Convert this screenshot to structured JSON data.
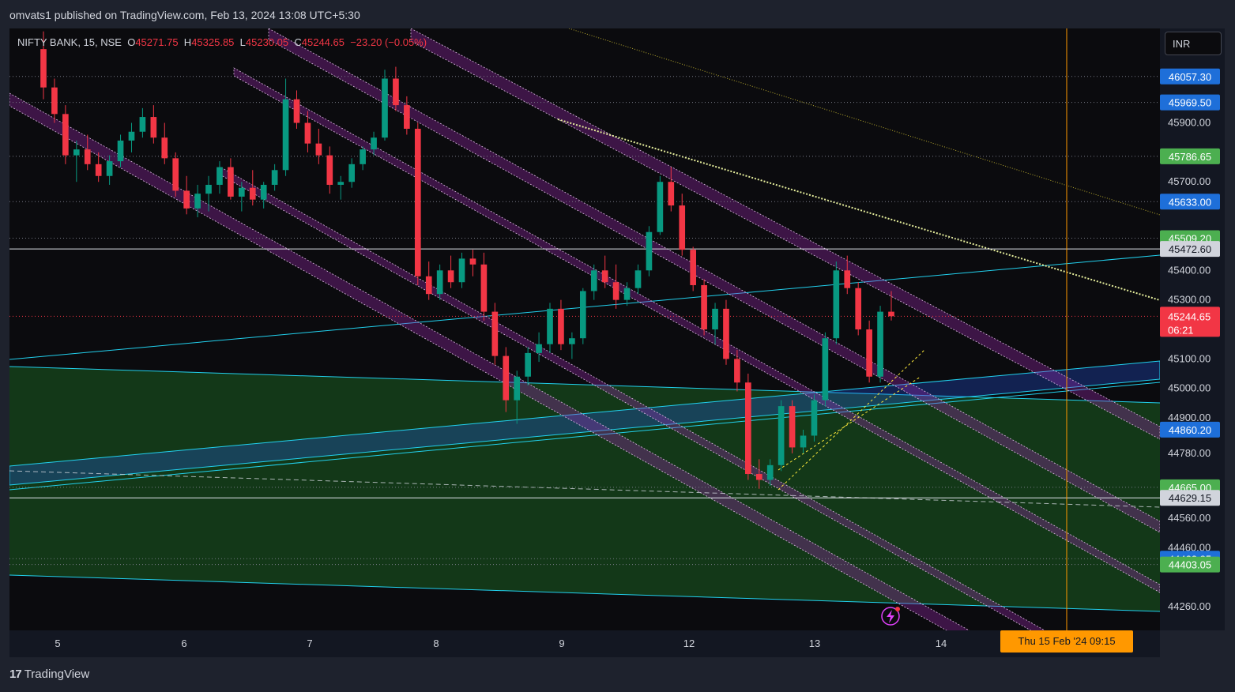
{
  "header": {
    "text": "omvats1 published on TradingView.com, Feb 13, 2024 13:08 UTC+5:30"
  },
  "legend": {
    "symbol": "NIFTY BANK, 15, NSE",
    "o_label": "O",
    "o_value": "45271.75",
    "h_label": "H",
    "h_value": "45325.85",
    "l_label": "L",
    "l_value": "45230.05",
    "c_label": "C",
    "c_value": "45244.65",
    "change": "−23.20 (−0.05%)"
  },
  "currency_button": "INR",
  "footer": {
    "logo_text": "TradingView"
  },
  "chart_data": {
    "type": "candlestick",
    "x_tick_labels": [
      "5",
      "6",
      "7",
      "8",
      "9",
      "12",
      "13",
      "14"
    ],
    "x_highlight_label": "Thu 15 Feb '24   09:15",
    "y_range": [
      44180,
      46220
    ],
    "y_tick_labels": [
      "45900.00",
      "45700.00",
      "45400.00",
      "45300.00",
      "45100.00",
      "45000.00",
      "44900.00",
      "44780.00",
      "44560.00",
      "44460.00",
      "44260.00"
    ],
    "price_tags": [
      {
        "value": 46057.3,
        "label": "46057.30",
        "color": "#1e6fd9",
        "text_color": "#ffffff"
      },
      {
        "value": 45969.5,
        "label": "45969.50",
        "color": "#1e6fd9",
        "text_color": "#ffffff"
      },
      {
        "value": 45786.65,
        "label": "45786.65",
        "color": "#4caf50",
        "text_color": "#ffffff"
      },
      {
        "value": 45633.0,
        "label": "45633.00",
        "color": "#1e6fd9",
        "text_color": "#ffffff"
      },
      {
        "value": 45509.2,
        "label": "45509.20",
        "color": "#4caf50",
        "text_color": "#ffffff"
      },
      {
        "value": 45472.6,
        "label": "45472.60",
        "color": "#d1d4dc",
        "text_color": "#131722"
      },
      {
        "value": 44860.2,
        "label": "44860.20",
        "color": "#1e6fd9",
        "text_color": "#ffffff"
      },
      {
        "value": 44665.0,
        "label": "44665.00",
        "color": "#4caf50",
        "text_color": "#ffffff"
      },
      {
        "value": 44629.15,
        "label": "44629.15",
        "color": "#d1d4dc",
        "text_color": "#131722"
      },
      {
        "value": 44422.85,
        "label": "44422.85",
        "color": "#1e6fd9",
        "text_color": "#ffffff"
      },
      {
        "value": 44403.05,
        "label": "44403.05",
        "color": "#4caf50",
        "text_color": "#ffffff"
      }
    ],
    "last_price": {
      "value": 45244.65,
      "label": "45244.65",
      "countdown": "06:21",
      "color": "#f23645"
    },
    "colors": {
      "up": "#089981",
      "down": "#f23645",
      "channel": "#9c27b0",
      "trend_cyan": "#22d1ee",
      "zone_green": "#1b5e20",
      "vertical": "#ff9800",
      "yellow": "#ffeb3b"
    },
    "horizontal_levels": [
      46057.3,
      45969.5,
      45786.65,
      45633.0,
      45509.2,
      44665.0,
      44422.85,
      44403.05
    ],
    "white_levels": [
      45472.6,
      44629.15
    ],
    "candles_ohlc_summary": [
      [
        46150,
        46210,
        45980,
        46020
      ],
      [
        46020,
        46050,
        45900,
        45930
      ],
      [
        45930,
        45960,
        45760,
        45790
      ],
      [
        45790,
        45840,
        45700,
        45810
      ],
      [
        45810,
        45860,
        45740,
        45760
      ],
      [
        45760,
        45800,
        45700,
        45720
      ],
      [
        45720,
        45790,
        45690,
        45770
      ],
      [
        45770,
        45860,
        45750,
        45840
      ],
      [
        45840,
        45900,
        45800,
        45870
      ],
      [
        45870,
        45950,
        45850,
        45920
      ],
      [
        45920,
        45960,
        45830,
        45850
      ],
      [
        45850,
        45900,
        45760,
        45780
      ],
      [
        45780,
        45800,
        45650,
        45670
      ],
      [
        45670,
        45720,
        45590,
        45610
      ],
      [
        45610,
        45690,
        45580,
        45660
      ],
      [
        45660,
        45720,
        45600,
        45690
      ],
      [
        45690,
        45770,
        45660,
        45750
      ],
      [
        45750,
        45780,
        45640,
        45650
      ],
      [
        45650,
        45700,
        45600,
        45680
      ],
      [
        45680,
        45740,
        45620,
        45640
      ],
      [
        45640,
        45700,
        45610,
        45690
      ],
      [
        45690,
        45760,
        45670,
        45740
      ],
      [
        45740,
        46050,
        45720,
        45980
      ],
      [
        45980,
        46010,
        45880,
        45900
      ],
      [
        45900,
        45940,
        45800,
        45830
      ],
      [
        45830,
        45880,
        45760,
        45790
      ],
      [
        45790,
        45820,
        45660,
        45690
      ],
      [
        45690,
        45720,
        45640,
        45700
      ],
      [
        45700,
        45780,
        45680,
        45760
      ],
      [
        45760,
        45820,
        45740,
        45810
      ],
      [
        45810,
        45870,
        45790,
        45850
      ],
      [
        45850,
        46080,
        45840,
        46050
      ],
      [
        46050,
        46090,
        45940,
        45960
      ],
      [
        45960,
        45990,
        45860,
        45880
      ],
      [
        45880,
        45900,
        45350,
        45380
      ],
      [
        45380,
        45430,
        45300,
        45320
      ],
      [
        45320,
        45420,
        45300,
        45400
      ],
      [
        45400,
        45450,
        45340,
        45360
      ],
      [
        45360,
        45460,
        45340,
        45440
      ],
      [
        45440,
        45470,
        45380,
        45420
      ],
      [
        45420,
        45460,
        45230,
        45260
      ],
      [
        45260,
        45290,
        45080,
        45110
      ],
      [
        45110,
        45140,
        44920,
        44960
      ],
      [
        44960,
        45060,
        44880,
        45040
      ],
      [
        45040,
        45140,
        45010,
        45120
      ],
      [
        45120,
        45190,
        45090,
        45150
      ],
      [
        45150,
        45290,
        45120,
        45270
      ],
      [
        45270,
        45300,
        45130,
        45150
      ],
      [
        45150,
        45190,
        45100,
        45170
      ],
      [
        45170,
        45340,
        45150,
        45330
      ],
      [
        45330,
        45420,
        45300,
        45400
      ],
      [
        45400,
        45450,
        45340,
        45360
      ],
      [
        45360,
        45420,
        45270,
        45300
      ],
      [
        45300,
        45360,
        45280,
        45340
      ],
      [
        45340,
        45420,
        45320,
        45400
      ],
      [
        45400,
        45550,
        45380,
        45530
      ],
      [
        45530,
        45720,
        45520,
        45700
      ],
      [
        45700,
        45750,
        45600,
        45620
      ],
      [
        45620,
        45660,
        45450,
        45470
      ],
      [
        45470,
        45480,
        45330,
        45350
      ],
      [
        45350,
        45370,
        45180,
        45200
      ],
      [
        45200,
        45290,
        45150,
        45270
      ],
      [
        45270,
        45300,
        45080,
        45100
      ],
      [
        45100,
        45130,
        44990,
        45020
      ],
      [
        45020,
        45050,
        44690,
        44710
      ],
      [
        44710,
        44760,
        44660,
        44690
      ],
      [
        44690,
        44760,
        44670,
        44740
      ],
      [
        44740,
        44960,
        44720,
        44940
      ],
      [
        44940,
        44960,
        44780,
        44800
      ],
      [
        44800,
        44860,
        44780,
        44840
      ],
      [
        44840,
        44980,
        44820,
        44960
      ],
      [
        44960,
        45190,
        44940,
        45170
      ],
      [
        45170,
        45430,
        45150,
        45400
      ],
      [
        45400,
        45450,
        45320,
        45340
      ],
      [
        45340,
        45360,
        45180,
        45200
      ],
      [
        45200,
        45230,
        45020,
        45040
      ],
      [
        45040,
        45280,
        45020,
        45260
      ],
      [
        45260,
        45330,
        45230,
        45244.65
      ]
    ]
  }
}
